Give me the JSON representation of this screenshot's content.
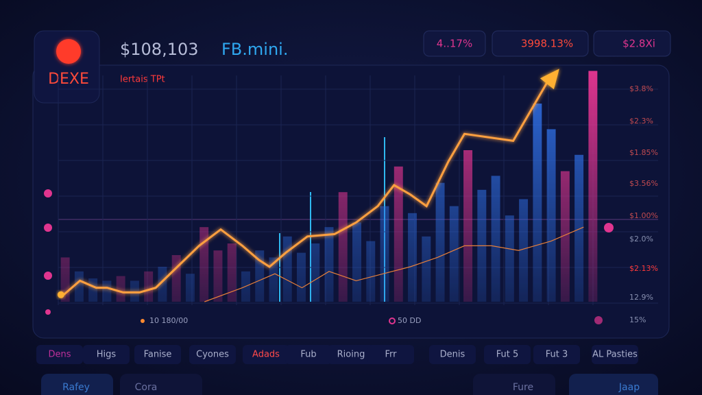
{
  "header": {
    "logo": "DEXE",
    "price": "$108,103",
    "ticker": "FB.mini.",
    "subtitle": "Iertais TPt"
  },
  "stats": [
    "4..17%",
    "3998.13%",
    "$2.8Xi"
  ],
  "chart_data": {
    "type": "bar",
    "values": [
      19,
      13,
      10,
      9,
      11,
      9,
      13,
      15,
      20,
      12,
      32,
      22,
      25,
      13,
      22,
      19,
      28,
      21,
      25,
      32,
      47,
      34,
      26,
      41,
      58,
      38,
      28,
      51,
      41,
      65,
      48,
      54,
      37,
      44,
      85,
      74,
      56,
      63,
      99
    ],
    "colors": [
      "#e0358f",
      "#2f6de0",
      "#2f6de0",
      "#2f6de0",
      "#e0358f",
      "#2f6de0",
      "#e0358f",
      "#2f6de0",
      "#e0358f",
      "#2f6de0",
      "#e0358f",
      "#e0358f",
      "#e0358f",
      "#2f6de0",
      "#2f6de0",
      "#2f6de0",
      "#2f6de0",
      "#2f6de0",
      "#2f6de0",
      "#2f6de0",
      "#e0358f",
      "#2f6de0",
      "#2f6de0",
      "#2f6de0",
      "#e0358f",
      "#2f6de0",
      "#2f6de0",
      "#2f6de0",
      "#2f6de0",
      "#e0358f",
      "#2f6de0",
      "#2f6de0",
      "#2f6de0",
      "#2f6de0",
      "#2f6de0",
      "#2f6de0",
      "#e0358f",
      "#2f6de0",
      "#e0358f"
    ],
    "ylim": [
      0,
      100
    ],
    "xlim": [
      0,
      100
    ],
    "series": [
      {
        "color": "#ffa040",
        "x": [
          1,
          4,
          7,
          9,
          12,
          15,
          18,
          22,
          26,
          30,
          34,
          37,
          39,
          42,
          46,
          51,
          55,
          59,
          62,
          65,
          68,
          72,
          75,
          84,
          87,
          91
        ],
        "values": [
          3,
          9,
          6,
          6,
          4,
          4,
          6,
          15,
          24,
          31,
          24,
          18,
          15,
          21,
          28,
          29,
          34,
          41,
          50,
          46,
          41,
          60,
          72,
          69,
          81,
          97
        ]
      },
      {
        "color": "#e8803a",
        "x": [
          27,
          34,
          40,
          45,
          50,
          55,
          60,
          65,
          70,
          75,
          80,
          85,
          91,
          97
        ],
        "values": [
          0,
          6,
          12,
          6,
          13,
          9,
          12,
          15,
          19,
          24,
          24,
          22,
          26,
          32
        ]
      }
    ],
    "y_labels": [
      "$3.8%",
      "$2.3%",
      "$1.85%",
      "$3.56%",
      "$1.00%",
      "$2.0%",
      "$2.13%",
      "12.9%",
      "15%"
    ],
    "markers": [
      "10 180/00",
      "50 DD"
    ]
  },
  "tabs": [
    "Dens",
    "Higs",
    "Fanise",
    "Cyones",
    "Adads",
    "Fub",
    "Rioing",
    "Frr",
    "Denis",
    "Fut 5",
    "Fut 3",
    "AL Pasties"
  ],
  "footer": [
    "Rafey",
    "Cora",
    "Fure",
    "Jaap"
  ]
}
